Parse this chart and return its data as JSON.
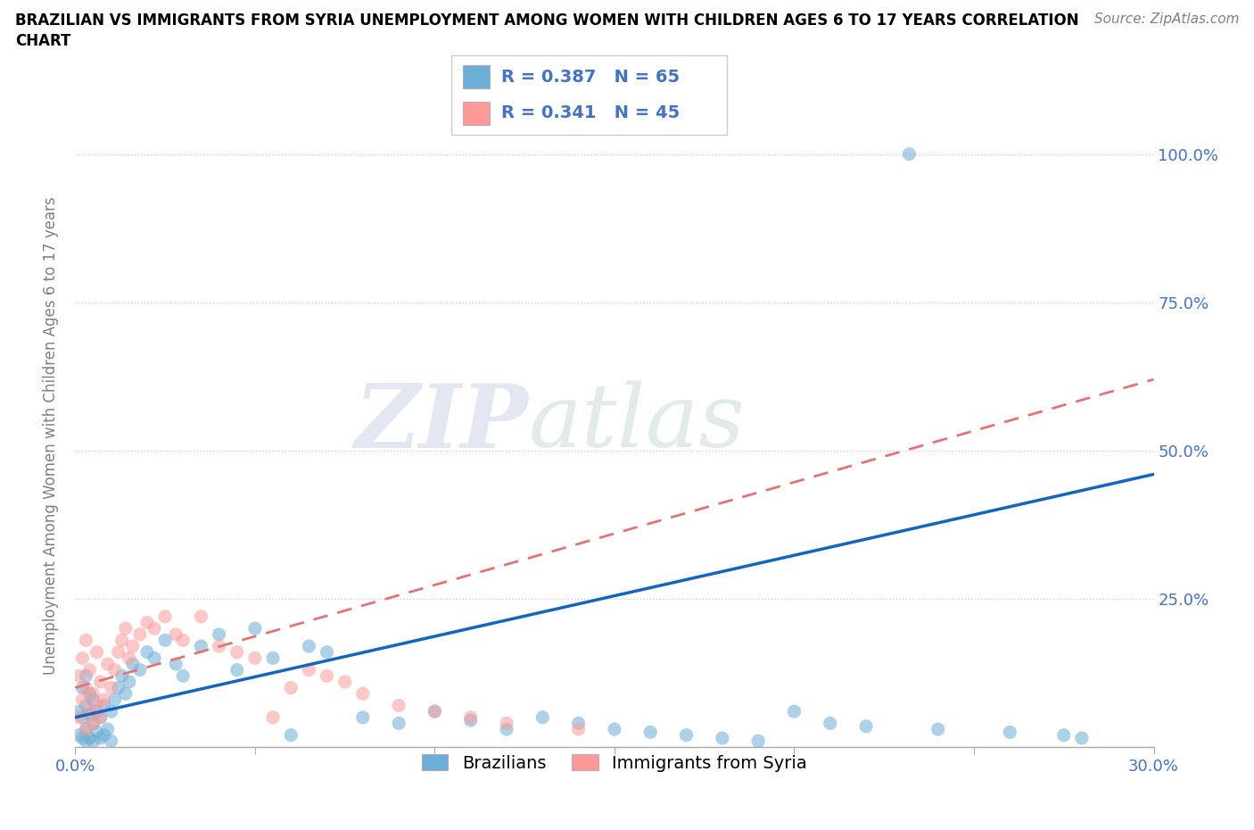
{
  "title_line1": "BRAZILIAN VS IMMIGRANTS FROM SYRIA UNEMPLOYMENT AMONG WOMEN WITH CHILDREN AGES 6 TO 17 YEARS CORRELATION",
  "title_line2": "CHART",
  "source": "Source: ZipAtlas.com",
  "ylabel": "Unemployment Among Women with Children Ages 6 to 17 years",
  "xlim": [
    0.0,
    0.3
  ],
  "ylim": [
    0.0,
    1.05
  ],
  "color_brazilian": "#6baed6",
  "color_syria": "#fb9a99",
  "color_br_line": "#1565C0",
  "color_sy_line": "#E57373",
  "watermark_zip": "ZIP",
  "watermark_atlas": "atlas",
  "br_R": 0.387,
  "br_N": 65,
  "sy_R": 0.341,
  "sy_N": 45,
  "tick_color": "#4472C4",
  "grid_color": "#cccccc",
  "title_fontsize": 12,
  "source_fontsize": 11,
  "tick_fontsize": 13,
  "ylabel_fontsize": 12,
  "legend_fontsize": 14
}
